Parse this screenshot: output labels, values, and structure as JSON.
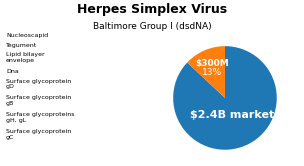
{
  "chart_data": {
    "type": "pie",
    "title": "Herpes Simplex Virus",
    "subtitle": "Baltimore Group I (dsdNA)",
    "categories": [
      "$2.4B market",
      "$300M"
    ],
    "values": [
      87,
      13
    ],
    "value_labels": [
      null,
      "13%"
    ],
    "annotations": [
      "Nucleoscapid",
      "Tegument",
      "Lipid bilayer\nenvelope",
      "Dna",
      "Surface glycoprotein\ngD",
      "Surface glycoprotein\ngB",
      "Surface glycoproteins\ngH, gL",
      "Surface glycoprotein\ngC"
    ]
  }
}
